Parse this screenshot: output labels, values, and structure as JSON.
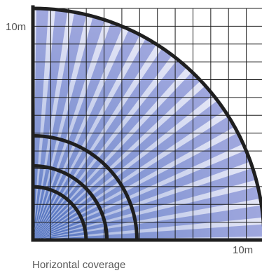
{
  "diagram": {
    "y_max_label": "10m",
    "x_max_label": "10m",
    "caption": "Horizontal coverage",
    "grid_divisions": 13,
    "detection_zones": 19,
    "arc_radii_m": [
      10,
      4.5,
      3.2,
      2.3
    ],
    "colors": {
      "grid": "#1c1c1c",
      "arc": "#1f1f1f",
      "sector_outer": "#8f98d8",
      "sector_inner": "#2f57b0",
      "gap_light": "#e4e6f6",
      "gap_dark": "#9fb0de"
    }
  }
}
